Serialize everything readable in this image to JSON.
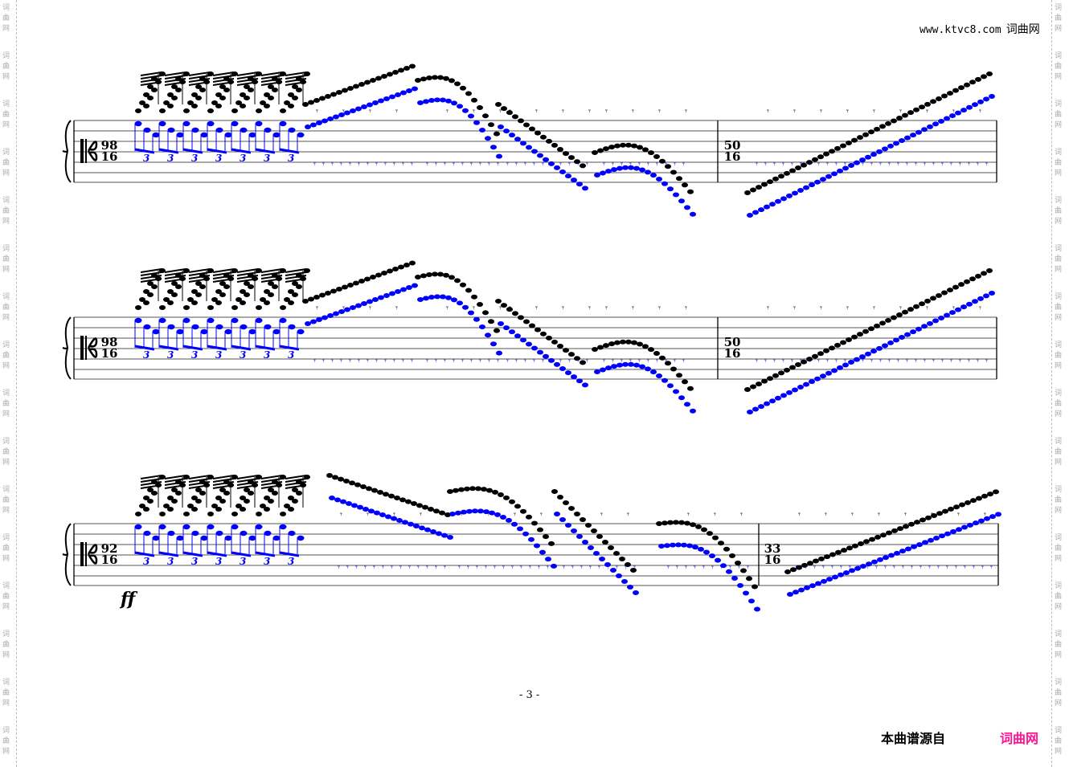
{
  "header": {
    "site_url": "www.ktvc8.com",
    "site_name": "词曲网"
  },
  "watermark": {
    "text": "词曲网"
  },
  "systems": [
    {
      "time_signatures": [
        {
          "num": "98",
          "den": "16"
        },
        {
          "num": "50",
          "den": "16"
        }
      ],
      "dynamic": ""
    },
    {
      "time_signatures": [
        {
          "num": "98",
          "den": "16"
        },
        {
          "num": "50",
          "den": "16"
        }
      ],
      "dynamic": ""
    },
    {
      "time_signatures": [
        {
          "num": "92",
          "den": "16"
        },
        {
          "num": "33",
          "den": "16"
        }
      ],
      "dynamic": "ff"
    }
  ],
  "tuplet_label": "3",
  "footer": {
    "page_number": "- 3 -",
    "source_label": "本曲谱源自",
    "source_brand": "词曲网"
  },
  "colors": {
    "voice1": "#000000",
    "voice2": "#0000ff",
    "brand": "#ff1493"
  }
}
